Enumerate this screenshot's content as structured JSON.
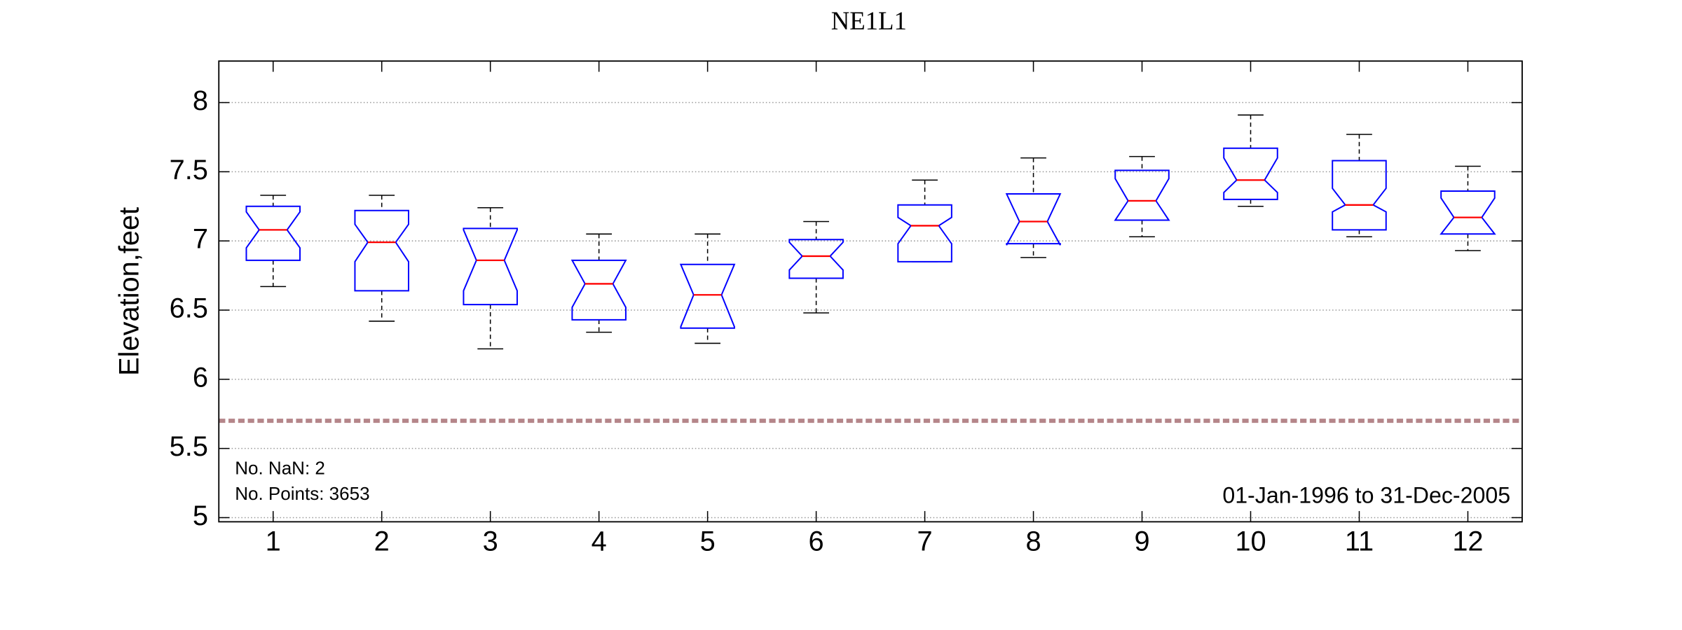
{
  "chart_data": {
    "type": "box",
    "title": "NE1L1",
    "y_label": "Elevation,feet",
    "categories": [
      "1",
      "2",
      "3",
      "4",
      "5",
      "6",
      "7",
      "8",
      "9",
      "10",
      "11",
      "12"
    ],
    "whisker_low": [
      6.67,
      6.42,
      6.22,
      6.34,
      6.26,
      6.48,
      6.85,
      6.88,
      7.03,
      7.25,
      7.03,
      6.93
    ],
    "q1": [
      6.86,
      6.64,
      6.54,
      6.43,
      6.37,
      6.73,
      6.85,
      6.98,
      7.15,
      7.3,
      7.08,
      7.05
    ],
    "median": [
      7.08,
      6.99,
      6.86,
      6.69,
      6.61,
      6.89,
      7.11,
      7.14,
      7.29,
      7.44,
      7.26,
      7.17
    ],
    "q3": [
      7.25,
      7.22,
      7.09,
      6.86,
      6.83,
      7.01,
      7.26,
      7.34,
      7.51,
      7.67,
      7.58,
      7.36
    ],
    "whisker_high": [
      7.33,
      7.33,
      7.24,
      7.05,
      7.05,
      7.14,
      7.44,
      7.6,
      7.61,
      7.91,
      7.77,
      7.54
    ],
    "notch_low": [
      6.95,
      6.85,
      6.64,
      6.52,
      6.38,
      6.79,
      6.98,
      6.97,
      7.15,
      7.35,
      7.21,
      7.05
    ],
    "notch_high": [
      7.21,
      7.12,
      7.08,
      6.86,
      6.83,
      6.99,
      7.17,
      7.34,
      7.45,
      7.6,
      7.38,
      7.31
    ],
    "box_color": "#0000ff",
    "median_color": "#ff0000",
    "whisker_color": "#000000",
    "reference_line": {
      "value": 5.7,
      "color": "#b5868a"
    },
    "xlim": [
      0.5,
      12.5
    ],
    "ylim": [
      4.97,
      8.3
    ],
    "yticks": [
      5,
      5.5,
      6,
      6.5,
      7,
      7.5,
      8
    ],
    "grid": true,
    "annotations": [
      "No. NaN: 2",
      "No. Points: 3653",
      "01-Jan-1996 to 31-Dec-2005"
    ]
  }
}
